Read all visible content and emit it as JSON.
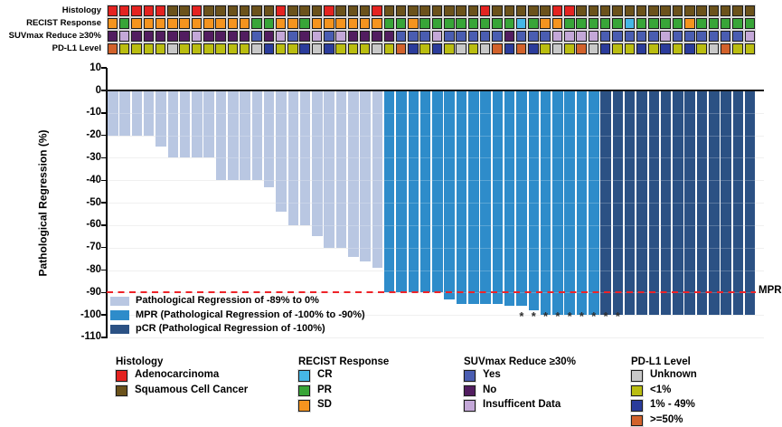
{
  "tracks": {
    "labels": [
      "Histology",
      "RECIST Response",
      "SUVmax Reduce ≥30%",
      "PD-L1 Level"
    ],
    "rows": [
      {
        "key": "histology",
        "values": [
          "A",
          "A",
          "A",
          "A",
          "A",
          "S",
          "S",
          "A",
          "S",
          "S",
          "S",
          "S",
          "S",
          "S",
          "A",
          "S",
          "S",
          "S",
          "A",
          "S",
          "S",
          "S",
          "A",
          "S",
          "S",
          "S",
          "S",
          "S",
          "S",
          "S",
          "S",
          "A",
          "S",
          "S",
          "S",
          "S",
          "S",
          "A",
          "A",
          "S",
          "S",
          "S",
          "S",
          "S",
          "S",
          "S",
          "S",
          "S",
          "S",
          "S",
          "S",
          "S",
          "S",
          "S"
        ]
      },
      {
        "key": "recist",
        "values": [
          "SD",
          "PR",
          "SD",
          "SD",
          "SD",
          "SD",
          "SD",
          "SD",
          "SD",
          "SD",
          "SD",
          "SD",
          "PR",
          "PR",
          "SD",
          "SD",
          "PR",
          "SD",
          "SD",
          "SD",
          "SD",
          "SD",
          "SD",
          "PR",
          "PR",
          "SD",
          "PR",
          "PR",
          "PR",
          "PR",
          "PR",
          "PR",
          "PR",
          "PR",
          "CR",
          "PR",
          "SD",
          "SD",
          "PR",
          "PR",
          "PR",
          "PR",
          "PR",
          "CR",
          "PR",
          "PR",
          "PR",
          "PR",
          "SD",
          "PR",
          "PR",
          "PR",
          "PR",
          "PR"
        ]
      },
      {
        "key": "suvmax",
        "values": [
          "N",
          "I",
          "N",
          "N",
          "N",
          "N",
          "N",
          "I",
          "N",
          "N",
          "N",
          "N",
          "Y",
          "N",
          "I",
          "Y",
          "N",
          "I",
          "Y",
          "I",
          "N",
          "N",
          "N",
          "N",
          "Y",
          "Y",
          "Y",
          "I",
          "Y",
          "Y",
          "Y",
          "Y",
          "Y",
          "N",
          "Y",
          "Y",
          "Y",
          "I",
          "I",
          "I",
          "I",
          "Y",
          "Y",
          "Y",
          "Y",
          "Y",
          "I",
          "Y",
          "Y",
          "Y",
          "Y",
          "Y",
          "Y",
          "I"
        ]
      },
      {
        "key": "pdl1",
        "values": [
          "H",
          "L",
          "L",
          "L",
          "L",
          "U",
          "L",
          "L",
          "L",
          "L",
          "L",
          "L",
          "U",
          "B",
          "L",
          "L",
          "B",
          "U",
          "B",
          "L",
          "L",
          "L",
          "U",
          "L",
          "H",
          "B",
          "L",
          "B",
          "L",
          "U",
          "L",
          "U",
          "H",
          "B",
          "H",
          "B",
          "L",
          "U",
          "L",
          "H",
          "U",
          "B",
          "L",
          "L",
          "B",
          "L",
          "B",
          "L",
          "B",
          "L",
          "U",
          "H",
          "L",
          "L"
        ]
      }
    ]
  },
  "colors": {
    "histology": {
      "A": "#e42320",
      "S": "#6b521b"
    },
    "recist": {
      "CR": "#45b7e6",
      "PR": "#38a538",
      "SD": "#f5941f"
    },
    "suvmax": {
      "Y": "#4a5db1",
      "N": "#521d60",
      "I": "#c4a8d8"
    },
    "pdl1": {
      "U": "#c8c8c8",
      "L": "#babd11",
      "B": "#2b3c9b",
      "H": "#d2622b"
    },
    "bar": {
      "reg": "#b9c7e2",
      "mpr": "#2e8cca",
      "pcr": "#2b5184"
    },
    "reference_line": "#ee2328"
  },
  "chart_data": {
    "type": "bar",
    "title": "",
    "xlabel": "",
    "ylabel": "Pathological Regression (%)",
    "ylim": [
      -110,
      10
    ],
    "yticks": [
      10,
      0,
      -10,
      -20,
      -30,
      -40,
      -50,
      -60,
      -70,
      -80,
      -90,
      -100,
      -110
    ],
    "grid": "horizontal-light",
    "values": [
      -20,
      -20,
      -20,
      -20,
      -25,
      -30,
      -30,
      -30,
      -30,
      -40,
      -40,
      -40,
      -40,
      -43,
      -54,
      -60,
      -60,
      -65,
      -70,
      -70,
      -74,
      -76,
      -79,
      -90,
      -90,
      -90,
      -90,
      -90,
      -93,
      -95,
      -95,
      -95,
      -95,
      -96,
      -96,
      -98,
      -100,
      -100,
      -100,
      -100,
      -100,
      -100,
      -100,
      -100,
      -100,
      -100,
      -100,
      -100,
      -100,
      -100,
      -100,
      -100,
      -100,
      -100
    ],
    "groups": [
      "reg",
      "reg",
      "reg",
      "reg",
      "reg",
      "reg",
      "reg",
      "reg",
      "reg",
      "reg",
      "reg",
      "reg",
      "reg",
      "reg",
      "reg",
      "reg",
      "reg",
      "reg",
      "reg",
      "reg",
      "reg",
      "reg",
      "reg",
      "mpr",
      "mpr",
      "mpr",
      "mpr",
      "mpr",
      "mpr",
      "mpr",
      "mpr",
      "mpr",
      "mpr",
      "mpr",
      "mpr",
      "mpr",
      "mpr",
      "mpr",
      "mpr",
      "mpr",
      "mpr",
      "pcr",
      "pcr",
      "pcr",
      "pcr",
      "pcr",
      "pcr",
      "pcr",
      "pcr",
      "pcr",
      "pcr",
      "pcr",
      "pcr",
      "pcr"
    ],
    "starred_bar_indices": [
      34,
      35,
      36,
      37,
      38,
      39,
      40,
      41,
      42
    ],
    "star_symbol": "*",
    "reference_line": {
      "y": -90,
      "label": "MPR",
      "style": "dashed"
    },
    "legend_position": "inside-bottom-left",
    "legend": [
      {
        "key": "reg",
        "label": "Pathological Regression of -89% to 0%"
      },
      {
        "key": "mpr",
        "label": "MPR (Pathological Regression of -100% to -90%)"
      },
      {
        "key": "pcr",
        "label": "pCR (Pathological Regression of -100%)"
      }
    ]
  },
  "footer_legends": [
    {
      "title": "Histology",
      "items": [
        {
          "label": "Adenocarcinoma",
          "color": "#e42320"
        },
        {
          "label": "Squamous Cell Cancer",
          "color": "#6b521b"
        }
      ]
    },
    {
      "title": "RECIST Response",
      "items": [
        {
          "label": "CR",
          "color": "#45b7e6"
        },
        {
          "label": "PR",
          "color": "#38a538"
        },
        {
          "label": "SD",
          "color": "#f5941f"
        }
      ]
    },
    {
      "title": "SUVmax Reduce ≥30%",
      "items": [
        {
          "label": "Yes",
          "color": "#4a5db1"
        },
        {
          "label": "No",
          "color": "#521d60"
        },
        {
          "label": "Insufficent Data",
          "color": "#c4a8d8"
        }
      ]
    },
    {
      "title": "PD-L1 Level",
      "items": [
        {
          "label": "Unknown",
          "color": "#c8c8c8"
        },
        {
          "label": "<1%",
          "color": "#babd11"
        },
        {
          "label": "1% - 49%",
          "color": "#2b3c9b"
        },
        {
          "label": ">=50%",
          "color": "#d2622b"
        }
      ]
    }
  ]
}
